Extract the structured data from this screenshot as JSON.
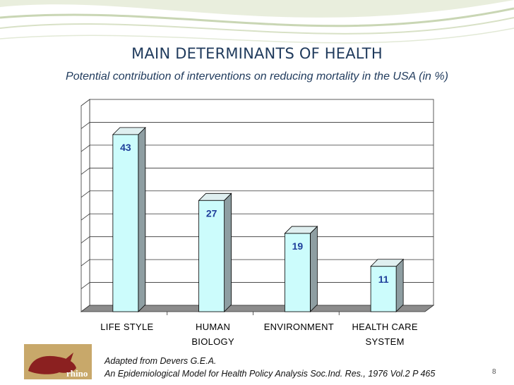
{
  "slide": {
    "title": "MAIN DETERMINANTS OF HEALTH",
    "subtitle": "Potential contribution of interventions on reducing mortality in the USA (in %)",
    "citation_line1": "Adapted from Devers G.E.A.",
    "citation_line2": "An Epidemiological Model for Health Policy Analysis Soc.Ind. Res., 1976 Vol.2 P 465",
    "page_number": "8",
    "logo_text": "rhino"
  },
  "chart_data": {
    "type": "bar",
    "title": "",
    "categories": [
      "LIFE STYLE",
      "HUMAN BIOLOGY",
      "ENVIRONMENT",
      "HEALTH CARE SYSTEM"
    ],
    "category_lines": [
      [
        "LIFE STYLE"
      ],
      [
        "HUMAN",
        "BIOLOGY"
      ],
      [
        "ENVIRONMENT"
      ],
      [
        "HEALTH CARE",
        "SYSTEM"
      ]
    ],
    "values": [
      43,
      27,
      19,
      11
    ],
    "ylim": [
      0,
      50
    ],
    "grid": true,
    "colors": {
      "bar_face": "#ccfcfc",
      "bar_side": "#8e9ea2",
      "bar_top": "#dfeff0",
      "bar_stroke": "#000000",
      "value_label": "#1f3f9b",
      "floor": "#8c8c8c"
    }
  }
}
